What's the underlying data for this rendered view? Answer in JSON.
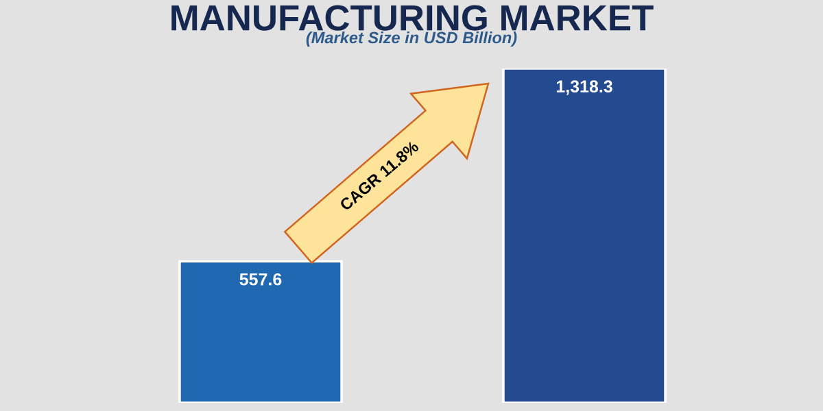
{
  "chart_data": {
    "type": "bar",
    "title": "MANUFACTURING MARKET",
    "subtitle": "(Market Size in USD Billion)",
    "categories": [
      null,
      null
    ],
    "values": [
      557.6,
      1318.3
    ],
    "value_labels": [
      "557.6",
      "1,318.3"
    ],
    "colors": [
      "#2068b0",
      "#244a90"
    ],
    "tick_labels": false,
    "grid": false,
    "legend": false,
    "annotations": [
      "CAGR 11.8%"
    ]
  }
}
